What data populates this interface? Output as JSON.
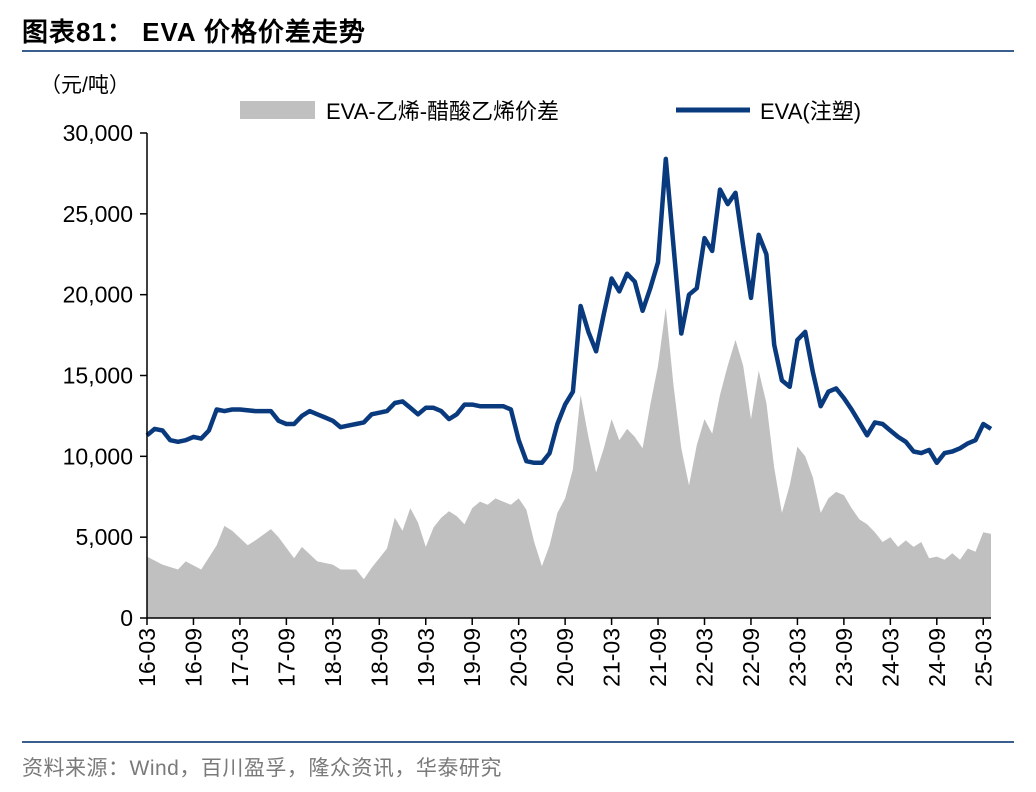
{
  "header": {
    "title": "图表81：  EVA 价格价差走势"
  },
  "footer": {
    "source": "资料来源：Wind，百川盈孚，隆众资讯，华泰研究"
  },
  "colors": {
    "spread_fill": "#c0c0c0",
    "eva_line": "#0a3a7e",
    "rule": "#3a5f8f"
  },
  "chart_data": {
    "type": "line",
    "unit_label": "（元/吨）",
    "ylim": [
      0,
      30000
    ],
    "yticks": [
      "0",
      "5,000",
      "10,000",
      "15,000",
      "20,000",
      "25,000",
      "30,000"
    ],
    "xticks": [
      "16-03",
      "16-09",
      "17-03",
      "17-09",
      "18-03",
      "18-09",
      "19-03",
      "19-09",
      "20-03",
      "20-09",
      "21-03",
      "21-09",
      "22-03",
      "22-09",
      "23-03",
      "23-09",
      "24-03",
      "24-09",
      "25-03"
    ],
    "xlim": [
      "2016-03",
      "2025-04"
    ],
    "grid": false,
    "legend_position": "top",
    "series": [
      {
        "name": "EVA-乙烯-醋酸乙烯价差",
        "type": "area",
        "points": [
          [
            "2016-03",
            3800
          ],
          [
            "2016-05",
            3300
          ],
          [
            "2016-07",
            3000
          ],
          [
            "2016-08",
            3500
          ],
          [
            "2016-10",
            3000
          ],
          [
            "2016-12",
            4500
          ],
          [
            "2017-01",
            5700
          ],
          [
            "2017-02",
            5400
          ],
          [
            "2017-04",
            4500
          ],
          [
            "2017-05",
            4800
          ],
          [
            "2017-07",
            5500
          ],
          [
            "2017-08",
            5000
          ],
          [
            "2017-10",
            3700
          ],
          [
            "2017-11",
            4400
          ],
          [
            "2018-01",
            3500
          ],
          [
            "2018-03",
            3300
          ],
          [
            "2018-04",
            3000
          ],
          [
            "2018-06",
            3000
          ],
          [
            "2018-07",
            2400
          ],
          [
            "2018-08",
            3100
          ],
          [
            "2018-10",
            4300
          ],
          [
            "2018-11",
            6200
          ],
          [
            "2018-12",
            5400
          ],
          [
            "2019-01",
            6800
          ],
          [
            "2019-02",
            5900
          ],
          [
            "2019-03",
            4400
          ],
          [
            "2019-04",
            5600
          ],
          [
            "2019-05",
            6200
          ],
          [
            "2019-06",
            6600
          ],
          [
            "2019-07",
            6300
          ],
          [
            "2019-08",
            5800
          ],
          [
            "2019-09",
            6800
          ],
          [
            "2019-10",
            7200
          ],
          [
            "2019-11",
            7000
          ],
          [
            "2019-12",
            7400
          ],
          [
            "2020-01",
            7200
          ],
          [
            "2020-02",
            7000
          ],
          [
            "2020-03",
            7400
          ],
          [
            "2020-04",
            6700
          ],
          [
            "2020-05",
            4700
          ],
          [
            "2020-06",
            3200
          ],
          [
            "2020-07",
            4500
          ],
          [
            "2020-08",
            6500
          ],
          [
            "2020-09",
            7400
          ],
          [
            "2020-10",
            9200
          ],
          [
            "2020-11",
            13800
          ],
          [
            "2020-12",
            11200
          ],
          [
            "2021-01",
            9000
          ],
          [
            "2021-02",
            10500
          ],
          [
            "2021-03",
            12300
          ],
          [
            "2021-04",
            11000
          ],
          [
            "2021-05",
            11700
          ],
          [
            "2021-06",
            11200
          ],
          [
            "2021-07",
            10500
          ],
          [
            "2021-08",
            13200
          ],
          [
            "2021-09",
            15600
          ],
          [
            "2021-10",
            19200
          ],
          [
            "2021-11",
            14400
          ],
          [
            "2021-12",
            10500
          ],
          [
            "2022-01",
            8200
          ],
          [
            "2022-02",
            10700
          ],
          [
            "2022-03",
            12300
          ],
          [
            "2022-04",
            11400
          ],
          [
            "2022-05",
            13800
          ],
          [
            "2022-06",
            15600
          ],
          [
            "2022-07",
            17200
          ],
          [
            "2022-08",
            15600
          ],
          [
            "2022-09",
            12300
          ],
          [
            "2022-10",
            15300
          ],
          [
            "2022-11",
            13300
          ],
          [
            "2022-12",
            9300
          ],
          [
            "2023-01",
            6500
          ],
          [
            "2023-02",
            8200
          ],
          [
            "2023-03",
            10600
          ],
          [
            "2023-04",
            10000
          ],
          [
            "2023-05",
            8700
          ],
          [
            "2023-06",
            6500
          ],
          [
            "2023-07",
            7400
          ],
          [
            "2023-08",
            7800
          ],
          [
            "2023-09",
            7600
          ],
          [
            "2023-10",
            6800
          ],
          [
            "2023-11",
            6100
          ],
          [
            "2023-12",
            5800
          ],
          [
            "2024-01",
            5300
          ],
          [
            "2024-02",
            4700
          ],
          [
            "2024-03",
            5000
          ],
          [
            "2024-04",
            4400
          ],
          [
            "2024-05",
            4800
          ],
          [
            "2024-06",
            4400
          ],
          [
            "2024-07",
            4700
          ],
          [
            "2024-08",
            3700
          ],
          [
            "2024-09",
            3800
          ],
          [
            "2024-10",
            3600
          ],
          [
            "2024-11",
            4000
          ],
          [
            "2024-12",
            3600
          ],
          [
            "2025-01",
            4300
          ],
          [
            "2025-02",
            4100
          ],
          [
            "2025-03",
            5300
          ],
          [
            "2025-04",
            5200
          ]
        ]
      },
      {
        "name": "EVA(注塑)",
        "type": "line",
        "points": [
          [
            "2016-03",
            11300
          ],
          [
            "2016-04",
            11700
          ],
          [
            "2016-05",
            11600
          ],
          [
            "2016-06",
            11000
          ],
          [
            "2016-07",
            10900
          ],
          [
            "2016-08",
            11000
          ],
          [
            "2016-09",
            11200
          ],
          [
            "2016-10",
            11100
          ],
          [
            "2016-11",
            11600
          ],
          [
            "2016-12",
            12900
          ],
          [
            "2017-01",
            12800
          ],
          [
            "2017-02",
            12900
          ],
          [
            "2017-03",
            12900
          ],
          [
            "2017-05",
            12800
          ],
          [
            "2017-07",
            12800
          ],
          [
            "2017-08",
            12200
          ],
          [
            "2017-09",
            12000
          ],
          [
            "2017-10",
            12000
          ],
          [
            "2017-11",
            12500
          ],
          [
            "2017-12",
            12800
          ],
          [
            "2018-01",
            12600
          ],
          [
            "2018-02",
            12400
          ],
          [
            "2018-03",
            12200
          ],
          [
            "2018-04",
            11800
          ],
          [
            "2018-05",
            11900
          ],
          [
            "2018-06",
            12000
          ],
          [
            "2018-07",
            12100
          ],
          [
            "2018-08",
            12600
          ],
          [
            "2018-09",
            12700
          ],
          [
            "2018-10",
            12800
          ],
          [
            "2018-11",
            13300
          ],
          [
            "2018-12",
            13400
          ],
          [
            "2019-01",
            13000
          ],
          [
            "2019-02",
            12600
          ],
          [
            "2019-03",
            13000
          ],
          [
            "2019-04",
            13000
          ],
          [
            "2019-05",
            12800
          ],
          [
            "2019-06",
            12300
          ],
          [
            "2019-07",
            12600
          ],
          [
            "2019-08",
            13200
          ],
          [
            "2019-09",
            13200
          ],
          [
            "2019-10",
            13100
          ],
          [
            "2019-11",
            13100
          ],
          [
            "2019-12",
            13100
          ],
          [
            "2020-01",
            13100
          ],
          [
            "2020-02",
            12900
          ],
          [
            "2020-03",
            11000
          ],
          [
            "2020-04",
            9700
          ],
          [
            "2020-05",
            9600
          ],
          [
            "2020-06",
            9600
          ],
          [
            "2020-07",
            10200
          ],
          [
            "2020-08",
            12000
          ],
          [
            "2020-09",
            13200
          ],
          [
            "2020-10",
            14000
          ],
          [
            "2020-11",
            19300
          ],
          [
            "2020-12",
            17700
          ],
          [
            "2021-01",
            16500
          ],
          [
            "2021-02",
            18800
          ],
          [
            "2021-03",
            21000
          ],
          [
            "2021-04",
            20200
          ],
          [
            "2021-05",
            21300
          ],
          [
            "2021-06",
            20800
          ],
          [
            "2021-07",
            19000
          ],
          [
            "2021-08",
            20400
          ],
          [
            "2021-09",
            22000
          ],
          [
            "2021-10",
            28400
          ],
          [
            "2021-11",
            23000
          ],
          [
            "2021-12",
            17600
          ],
          [
            "2022-01",
            20000
          ],
          [
            "2022-02",
            20400
          ],
          [
            "2022-03",
            23500
          ],
          [
            "2022-04",
            22700
          ],
          [
            "2022-05",
            26500
          ],
          [
            "2022-06",
            25600
          ],
          [
            "2022-07",
            26300
          ],
          [
            "2022-08",
            23000
          ],
          [
            "2022-09",
            19800
          ],
          [
            "2022-10",
            23700
          ],
          [
            "2022-11",
            22500
          ],
          [
            "2022-12",
            16900
          ],
          [
            "2023-01",
            14700
          ],
          [
            "2023-02",
            14300
          ],
          [
            "2023-03",
            17200
          ],
          [
            "2023-04",
            17700
          ],
          [
            "2023-05",
            15200
          ],
          [
            "2023-06",
            13100
          ],
          [
            "2023-07",
            14000
          ],
          [
            "2023-08",
            14200
          ],
          [
            "2023-09",
            13600
          ],
          [
            "2023-10",
            12900
          ],
          [
            "2023-11",
            12100
          ],
          [
            "2023-12",
            11300
          ],
          [
            "2024-01",
            12100
          ],
          [
            "2024-02",
            12000
          ],
          [
            "2024-03",
            11600
          ],
          [
            "2024-04",
            11200
          ],
          [
            "2024-05",
            10900
          ],
          [
            "2024-06",
            10300
          ],
          [
            "2024-07",
            10200
          ],
          [
            "2024-08",
            10400
          ],
          [
            "2024-09",
            9600
          ],
          [
            "2024-10",
            10200
          ],
          [
            "2024-11",
            10300
          ],
          [
            "2024-12",
            10500
          ],
          [
            "2025-01",
            10800
          ],
          [
            "2025-02",
            11000
          ],
          [
            "2025-03",
            12000
          ],
          [
            "2025-04",
            11700
          ]
        ]
      }
    ]
  }
}
